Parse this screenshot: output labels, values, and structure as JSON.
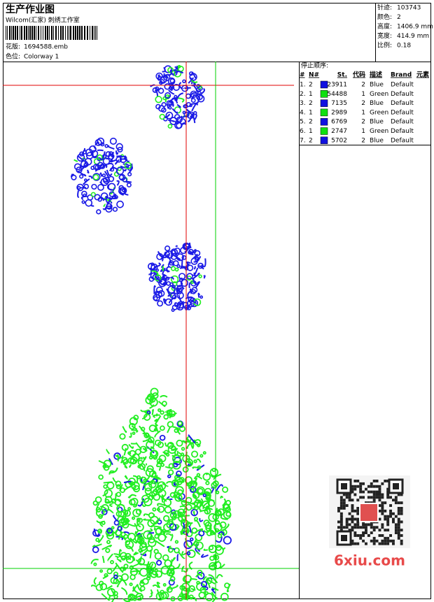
{
  "header": {
    "title": "生产作业图",
    "studio": "Wilcom(汇家) 刺绣工作室",
    "design_label": "花版:",
    "design": "1694588.emb",
    "colorway_label": "色位:",
    "colorway": "Colorway 1"
  },
  "stats": [
    {
      "label": "针迹:",
      "value": "103743"
    },
    {
      "label": "颜色:",
      "value": "2"
    },
    {
      "label": "高度:",
      "value": "1406.9 mm"
    },
    {
      "label": "宽度:",
      "value": "414.9 mm"
    },
    {
      "label": "比例:",
      "value": "0.18"
    }
  ],
  "stop_sequence": {
    "title": "停止顺序:",
    "columns": [
      "#",
      "N#",
      "St.",
      "代码",
      "描述",
      "Brand",
      "元素"
    ],
    "rows": [
      {
        "seq": "1.",
        "needle": "2",
        "color": "#1010e0",
        "stitches": 23911,
        "code": "2",
        "description": "Blue",
        "brand": "Default"
      },
      {
        "seq": "2.",
        "needle": "1",
        "color": "#10e010",
        "stitches": 54488,
        "code": "1",
        "description": "Green",
        "brand": "Default"
      },
      {
        "seq": "3.",
        "needle": "2",
        "color": "#1010e0",
        "stitches": 7135,
        "code": "2",
        "description": "Blue",
        "brand": "Default"
      },
      {
        "seq": "4.",
        "needle": "1",
        "color": "#10e010",
        "stitches": 2989,
        "code": "1",
        "description": "Green",
        "brand": "Default"
      },
      {
        "seq": "5.",
        "needle": "2",
        "color": "#1010e0",
        "stitches": 6769,
        "code": "2",
        "description": "Blue",
        "brand": "Default"
      },
      {
        "seq": "6.",
        "needle": "1",
        "color": "#10e010",
        "stitches": 2747,
        "code": "1",
        "description": "Green",
        "brand": "Default"
      },
      {
        "seq": "7.",
        "needle": "2",
        "color": "#1010e0",
        "stitches": 5702,
        "code": "2",
        "description": "Blue",
        "brand": "Default"
      }
    ]
  },
  "watermark": "6xiu.com"
}
